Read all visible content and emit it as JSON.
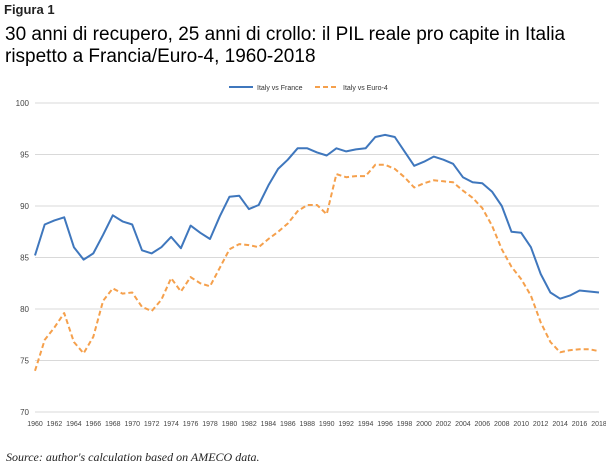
{
  "figure": {
    "label": "Figura 1",
    "title_line1": "30 anni di recupero, 25 anni di crollo: il PIL reale pro capite in Italia",
    "title_line2": "rispetto a Francia/Euro-4, 1960-2018",
    "source": "Source: author's calculation based on AMECO data."
  },
  "colors": {
    "france": "#3f77bd",
    "euro4": "#f5a04c",
    "grid": "#d9d9d9",
    "axis_text": "#444444"
  },
  "chart_data": {
    "type": "line",
    "title": "30 anni di recupero, 25 anni di crollo: il PIL reale pro capite in Italia rispetto a Francia/Euro-4, 1960-2018",
    "xlabel": "",
    "ylabel": "",
    "ylim": [
      70,
      100
    ],
    "yticks": [
      70,
      75,
      80,
      85,
      90,
      95,
      100
    ],
    "grid": true,
    "legend_position": "top-center",
    "x": [
      1960,
      1961,
      1962,
      1963,
      1964,
      1965,
      1966,
      1967,
      1968,
      1969,
      1970,
      1971,
      1972,
      1973,
      1974,
      1975,
      1976,
      1977,
      1978,
      1979,
      1980,
      1981,
      1982,
      1983,
      1984,
      1985,
      1986,
      1987,
      1988,
      1989,
      1990,
      1991,
      1992,
      1993,
      1994,
      1995,
      1996,
      1997,
      1998,
      1999,
      2000,
      2001,
      2002,
      2003,
      2004,
      2005,
      2006,
      2007,
      2008,
      2009,
      2010,
      2011,
      2012,
      2013,
      2014,
      2015,
      2016,
      2017,
      2018
    ],
    "xtick_labels": [
      "1960",
      "1962",
      "1964",
      "1966",
      "1968",
      "1970",
      "1972",
      "1974",
      "1976",
      "1978",
      "1980",
      "1982",
      "1984",
      "1986",
      "1988",
      "1990",
      "1992",
      "1994",
      "1996",
      "1998",
      "2000",
      "2002",
      "2004",
      "2006",
      "2008",
      "2010",
      "2012",
      "2014",
      "2016",
      "2018"
    ],
    "series": [
      {
        "name": "Italy vs France",
        "style": "solid",
        "values": [
          85.2,
          88.2,
          88.6,
          88.9,
          86.0,
          84.8,
          85.4,
          87.2,
          89.1,
          88.5,
          88.2,
          85.7,
          85.4,
          86.0,
          87.0,
          85.9,
          88.1,
          87.4,
          86.8,
          89.0,
          90.9,
          91.0,
          89.7,
          90.1,
          92.0,
          93.6,
          94.5,
          95.6,
          95.6,
          95.2,
          94.9,
          95.6,
          95.3,
          95.5,
          95.6,
          96.7,
          96.9,
          96.7,
          95.3,
          93.9,
          94.3,
          94.8,
          94.5,
          94.1,
          92.8,
          92.3,
          92.2,
          91.4,
          90.0,
          87.5,
          87.4,
          86.0,
          83.4,
          81.6,
          81.0,
          81.3,
          81.8,
          81.7,
          81.6
        ]
      },
      {
        "name": "Italy vs Euro-4",
        "style": "dashed",
        "values": [
          74.0,
          77.0,
          78.2,
          79.6,
          76.8,
          75.7,
          77.3,
          80.8,
          82.0,
          81.5,
          81.6,
          80.2,
          79.8,
          80.9,
          83.0,
          81.7,
          83.1,
          82.5,
          82.2,
          84.0,
          85.8,
          86.3,
          86.2,
          86.0,
          86.8,
          87.5,
          88.3,
          89.5,
          90.1,
          90.1,
          89.2,
          93.1,
          92.8,
          92.9,
          92.9,
          94.0,
          94.0,
          93.6,
          92.8,
          91.8,
          92.2,
          92.5,
          92.4,
          92.3,
          91.5,
          90.8,
          89.8,
          88.1,
          85.8,
          84.1,
          82.9,
          81.3,
          78.7,
          76.8,
          75.8,
          76.0,
          76.1,
          76.1,
          75.9
        ]
      }
    ]
  }
}
